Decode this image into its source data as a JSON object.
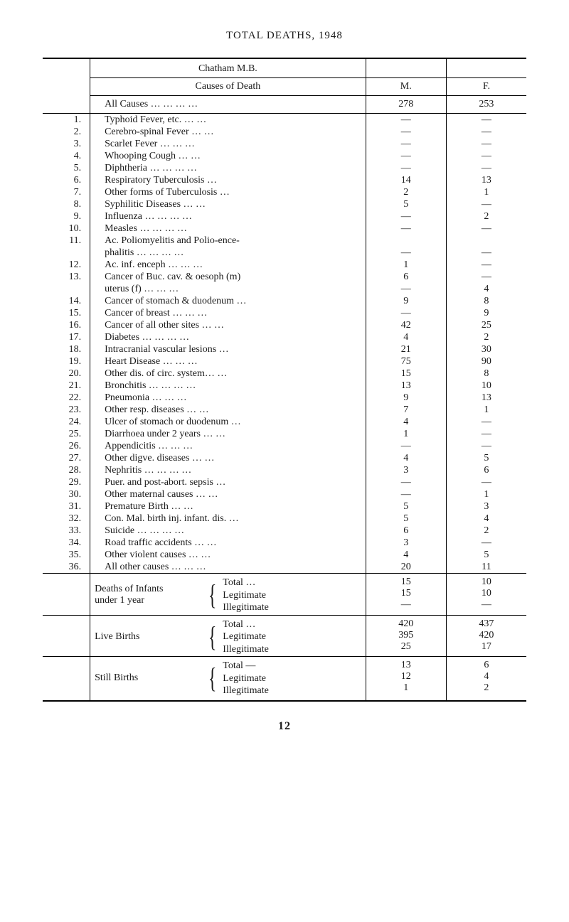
{
  "title": "TOTAL DEATHS, 1948",
  "district": "Chatham M.B.",
  "header": {
    "causes": "Causes of Death",
    "m": "M.",
    "f": "F."
  },
  "allcauses": {
    "label": "All Causes  …     …     …     …",
    "m": "278",
    "f": "253"
  },
  "rows": [
    {
      "i": "1.",
      "c": "Typhoid Fever, etc.       …     …",
      "m": "—",
      "f": "—"
    },
    {
      "i": "2.",
      "c": "Cerebro-spinal Fever     …     …",
      "m": "—",
      "f": "—"
    },
    {
      "i": "3.",
      "c": "Scarlet Fever            …     …     …",
      "m": "—",
      "f": "—"
    },
    {
      "i": "4.",
      "c": "Whooping Cough            …     …",
      "m": "—",
      "f": "—"
    },
    {
      "i": "5.",
      "c": "Diphtheria …       …     …     …",
      "m": "—",
      "f": "—"
    },
    {
      "i": "6.",
      "c": "Respiratory Tuberculosis         …",
      "m": "14",
      "f": "13"
    },
    {
      "i": "7.",
      "c": "Other forms of Tuberculosis     …",
      "m": "2",
      "f": "1"
    },
    {
      "i": "8.",
      "c": "Syphilitic Diseases           …     …",
      "m": "5",
      "f": "—"
    },
    {
      "i": "9.",
      "c": "Influenza   …      …     …     …",
      "m": "—",
      "f": "2"
    },
    {
      "i": "10.",
      "c": "Measles       …      …     …     …",
      "m": "—",
      "f": "—"
    },
    {
      "i": "11.",
      "c": "Ac. Poliomyelitis and Polio-ence-",
      "m": "",
      "f": ""
    },
    {
      "i": "",
      "c": "   phalitis   …      …     …     …",
      "m": "—",
      "f": "—"
    },
    {
      "i": "12.",
      "c": "Ac. inf. enceph       …     …     …",
      "m": "1",
      "f": "—"
    },
    {
      "i": "13.",
      "c": "Cancer of Buc. cav. & oesoph (m)",
      "m": "6",
      "f": "—"
    },
    {
      "i": "",
      "c": "   uterus (f)            …     …     …",
      "m": "—",
      "f": "4"
    },
    {
      "i": "14.",
      "c": "Cancer of stomach & duodenum …",
      "m": "9",
      "f": "8"
    },
    {
      "i": "15.",
      "c": "Cancer of breast …     …     …",
      "m": "—",
      "f": "9"
    },
    {
      "i": "16.",
      "c": "Cancer of all other sites  …     …",
      "m": "42",
      "f": "25"
    },
    {
      "i": "17.",
      "c": "Diabetes     …      …     …     …",
      "m": "4",
      "f": "2"
    },
    {
      "i": "18.",
      "c": "Intracranial vascular lesions      …",
      "m": "21",
      "f": "30"
    },
    {
      "i": "19.",
      "c": "Heart Disease         …     …     …",
      "m": "75",
      "f": "90"
    },
    {
      "i": "20.",
      "c": "Other dis. of circ. system…     …",
      "m": "15",
      "f": "8"
    },
    {
      "i": "21.",
      "c": "Bronchitis …       …     …     …",
      "m": "13",
      "f": "10"
    },
    {
      "i": "22.",
      "c": "Pneumonia            …     …     …",
      "m": "9",
      "f": "13"
    },
    {
      "i": "23.",
      "c": "Other resp. diseases        …     …",
      "m": "7",
      "f": "1"
    },
    {
      "i": "24.",
      "c": "Ulcer of stomach or duodenum  …",
      "m": "4",
      "f": "—"
    },
    {
      "i": "25.",
      "c": "Diarrhoea under 2 years  …     …",
      "m": "1",
      "f": "—"
    },
    {
      "i": "26.",
      "c": "Appendicitis            …     …     …",
      "m": "—",
      "f": "—"
    },
    {
      "i": "27.",
      "c": "Other digve. diseases      …     …",
      "m": "4",
      "f": "5"
    },
    {
      "i": "28.",
      "c": "Nephritis    …      …     …     …",
      "m": "3",
      "f": "6"
    },
    {
      "i": "29.",
      "c": "Puer. and post-abort. sepsis      …",
      "m": "—",
      "f": "—"
    },
    {
      "i": "30.",
      "c": "Other maternal causes    …     …",
      "m": "—",
      "f": "1"
    },
    {
      "i": "31.",
      "c": "Premature Birth            …     …",
      "m": "5",
      "f": "3"
    },
    {
      "i": "32.",
      "c": "Con. Mal. birth inj. infant. dis.  …",
      "m": "5",
      "f": "4"
    },
    {
      "i": "33.",
      "c": "Suicide       …      …     …     …",
      "m": "6",
      "f": "2"
    },
    {
      "i": "34.",
      "c": "Road traffic accidents      …     …",
      "m": "3",
      "f": "—"
    },
    {
      "i": "35.",
      "c": "Other violent causes        …     …",
      "m": "4",
      "f": "5"
    },
    {
      "i": "36.",
      "c": "All other causes   …     …     …",
      "m": "20",
      "f": "11"
    }
  ],
  "deaths_infants": {
    "label": "Deaths of Infants\nunder 1 year",
    "items": [
      {
        "l": "Total       …",
        "m": "15",
        "f": "10"
      },
      {
        "l": "Legitimate",
        "m": "15",
        "f": "10"
      },
      {
        "l": "Illegitimate",
        "m": "—",
        "f": "—"
      }
    ]
  },
  "live_births": {
    "label": "Live Births",
    "items": [
      {
        "l": "Total       …",
        "m": "420",
        "f": "437"
      },
      {
        "l": "Legitimate",
        "m": "395",
        "f": "420"
      },
      {
        "l": "Illegitimate",
        "m": "25",
        "f": "17"
      }
    ]
  },
  "still_births": {
    "label": "Still Births",
    "items": [
      {
        "l": "Total      —",
        "m": "13",
        "f": "6"
      },
      {
        "l": "Legitimate",
        "m": "12",
        "f": "4"
      },
      {
        "l": "Illegitimate",
        "m": "1",
        "f": "2"
      }
    ]
  },
  "page_number": "12"
}
